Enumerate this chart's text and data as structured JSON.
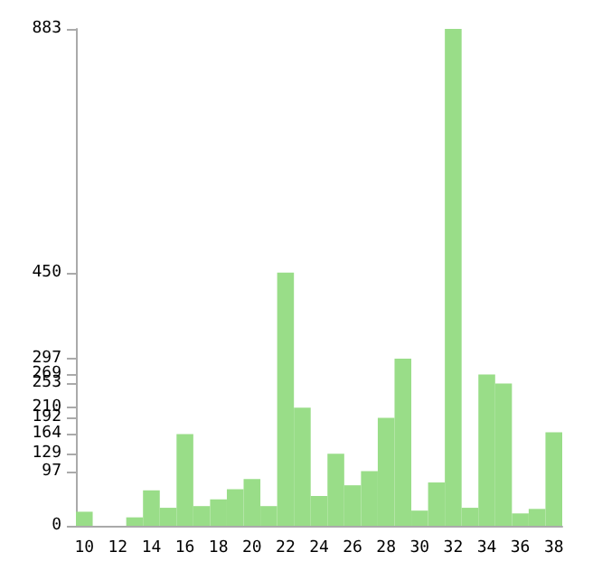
{
  "chart_data": {
    "type": "bar",
    "categories": [
      "10",
      null,
      "12",
      null,
      "14",
      null,
      "16",
      null,
      "18",
      null,
      "20",
      null,
      "22",
      null,
      "24",
      null,
      "26",
      null,
      "28",
      null,
      "30",
      null,
      "32",
      null,
      "34",
      null,
      "36",
      null,
      "38"
    ],
    "values": [
      25,
      0,
      0,
      15,
      63,
      32,
      163,
      35,
      47,
      65,
      83,
      35,
      450,
      210,
      53,
      128,
      72,
      97,
      192,
      297,
      27,
      77,
      883,
      32,
      269,
      253,
      22,
      30,
      166
    ],
    "color": "#99dd88",
    "ylim": [
      0,
      883
    ],
    "yticks": [
      0,
      97,
      129,
      164,
      192,
      210,
      253,
      269,
      297,
      450,
      883
    ],
    "grid": false
  }
}
